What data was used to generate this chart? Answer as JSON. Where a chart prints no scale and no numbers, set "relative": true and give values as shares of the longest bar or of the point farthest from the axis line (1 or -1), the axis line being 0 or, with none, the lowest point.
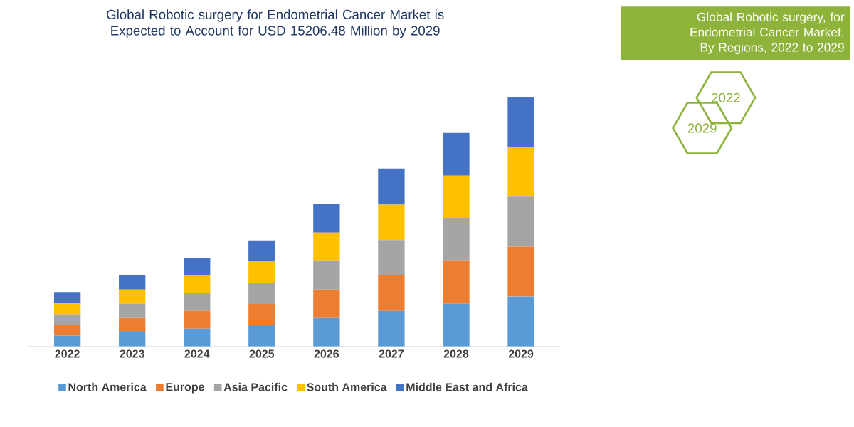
{
  "chart_data": {
    "type": "bar",
    "stacked": true,
    "relative": true,
    "title": "Global Robotic surgery for Endometrial Cancer Market is Expected to Account for USD 15206.48 Million by 2029",
    "subtitle": "Global Robotic surgery, for Endometrial Cancer Market, By Regions, 2022 to 2029",
    "annotations": [
      "2022",
      "2029"
    ],
    "categories": [
      "2022",
      "2023",
      "2024",
      "2025",
      "2026",
      "2027",
      "2028",
      "2029"
    ],
    "series": [
      {
        "name": "North America",
        "color": "#5b9bd5",
        "values": [
          0.043,
          0.057,
          0.071,
          0.085,
          0.114,
          0.142,
          0.171,
          0.2
        ]
      },
      {
        "name": "Europe",
        "color": "#ed7d31",
        "values": [
          0.043,
          0.057,
          0.071,
          0.085,
          0.114,
          0.142,
          0.171,
          0.2
        ]
      },
      {
        "name": "Asia Pacific",
        "color": "#a5a5a5",
        "values": [
          0.043,
          0.057,
          0.071,
          0.085,
          0.114,
          0.142,
          0.171,
          0.2
        ]
      },
      {
        "name": "South America",
        "color": "#ffc000",
        "values": [
          0.043,
          0.057,
          0.071,
          0.085,
          0.114,
          0.142,
          0.171,
          0.2
        ]
      },
      {
        "name": "Middle East and Africa",
        "color": "#4472c4",
        "values": [
          0.043,
          0.057,
          0.071,
          0.085,
          0.114,
          0.145,
          0.171,
          0.2
        ]
      }
    ],
    "legend": "bottom"
  }
}
